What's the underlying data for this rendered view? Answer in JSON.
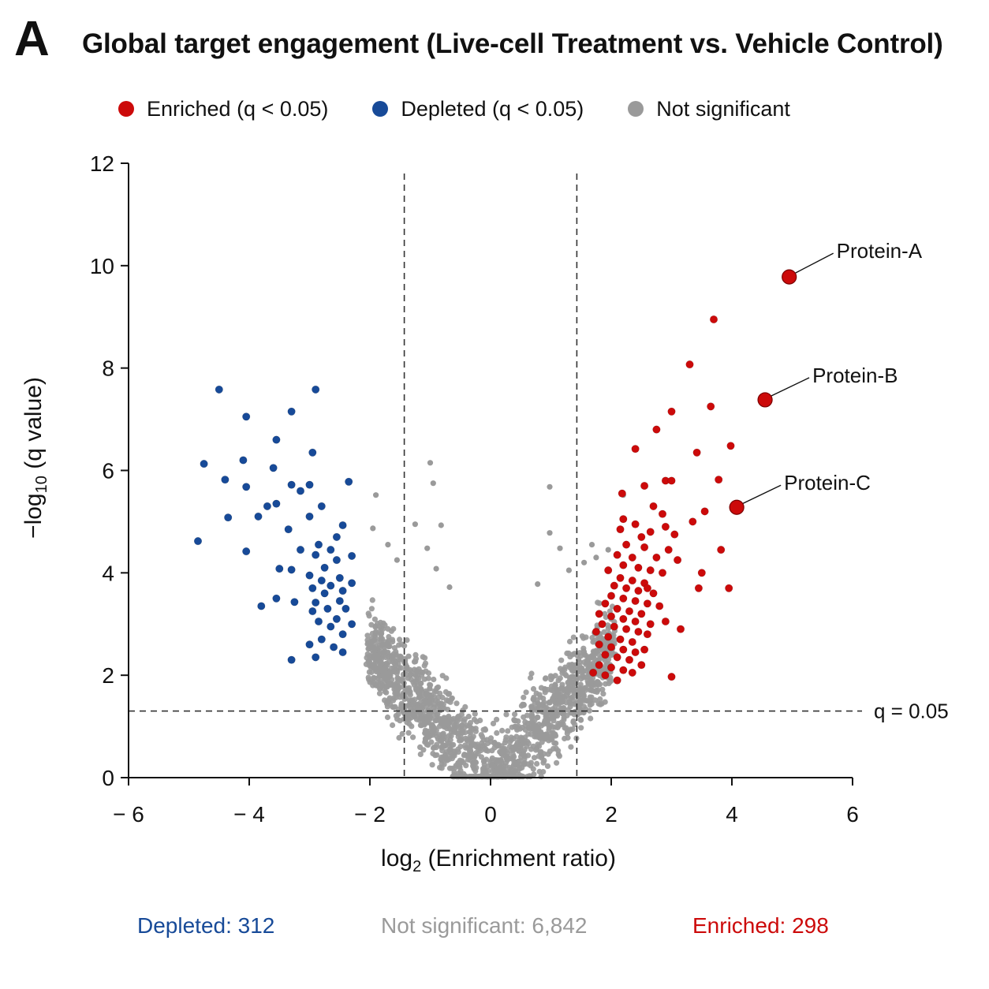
{
  "panel": {
    "letter": "A"
  },
  "colors": {
    "enriched": "#cc0a0a",
    "depleted": "#174a98",
    "not_significant": "#9a9a9a",
    "axis": "#111111"
  },
  "legend": {
    "items": [
      {
        "label": "Enriched (q < 0.05)",
        "color": "#cc0a0a"
      },
      {
        "label": "Depleted (q < 0.05)",
        "color": "#174a98"
      },
      {
        "label": "Not significant",
        "color": "#9a9a9a"
      }
    ]
  },
  "counts": {
    "depleted": "Depleted: 312",
    "not_significant": "Not significant: 6,842",
    "enriched": "Enriched: 298"
  },
  "chart_data": {
    "type": "scatter",
    "title": "Global target engagement (Live-cell Treatment vs. Vehicle Control)",
    "xlabel_prefix": "log",
    "xlabel_sub": "2",
    "xlabel_suffix": " (Enrichment ratio)",
    "ylabel_prefix": "−log",
    "ylabel_sub": "10",
    "ylabel_suffix": " (q value)",
    "xlim": [
      -6,
      6
    ],
    "ylim": [
      0,
      12
    ],
    "xticks": [
      -6,
      -4,
      -2,
      0,
      2,
      4,
      6
    ],
    "xtick_labels": [
      "− 6",
      "− 4",
      "− 2",
      "0",
      "2",
      "4",
      "6"
    ],
    "yticks": [
      0,
      2,
      4,
      6,
      8,
      10,
      12
    ],
    "ytick_labels": [
      "0",
      "2",
      "4",
      "6",
      "8",
      "10",
      "12"
    ],
    "thresholds": {
      "fc_x": [
        -1.43,
        1.43
      ],
      "q_y": 1.3,
      "q_label": "q = 0.05"
    },
    "grid": false,
    "legend_position": "top",
    "highlighted": [
      {
        "label": "Protein-A",
        "x": 4.95,
        "y": 9.78
      },
      {
        "label": "Protein-B",
        "x": 4.55,
        "y": 7.38
      },
      {
        "label": "Protein-C",
        "x": 4.08,
        "y": 5.28
      }
    ],
    "series": [
      {
        "name": "Enriched (q < 0.05)",
        "points": [
          [
            3.7,
            8.95
          ],
          [
            3.3,
            8.07
          ],
          [
            3.65,
            7.25
          ],
          [
            3.0,
            7.15
          ],
          [
            2.75,
            6.8
          ],
          [
            3.98,
            6.48
          ],
          [
            2.4,
            6.42
          ],
          [
            3.42,
            6.35
          ],
          [
            3.78,
            5.82
          ],
          [
            2.9,
            5.8
          ],
          [
            3.0,
            5.8
          ],
          [
            2.55,
            5.7
          ],
          [
            2.18,
            5.55
          ],
          [
            2.7,
            5.3
          ],
          [
            3.55,
            5.2
          ],
          [
            2.85,
            5.15
          ],
          [
            2.2,
            5.05
          ],
          [
            3.35,
            5.0
          ],
          [
            2.4,
            4.95
          ],
          [
            2.9,
            4.9
          ],
          [
            2.15,
            4.85
          ],
          [
            2.65,
            4.8
          ],
          [
            3.05,
            4.75
          ],
          [
            2.5,
            4.7
          ],
          [
            3.82,
            4.45
          ],
          [
            2.25,
            4.55
          ],
          [
            2.55,
            4.5
          ],
          [
            2.95,
            4.45
          ],
          [
            2.1,
            4.35
          ],
          [
            2.35,
            4.3
          ],
          [
            2.75,
            4.3
          ],
          [
            3.1,
            4.25
          ],
          [
            2.2,
            4.15
          ],
          [
            2.45,
            4.1
          ],
          [
            2.65,
            4.05
          ],
          [
            2.85,
            4.0
          ],
          [
            3.5,
            4.0
          ],
          [
            1.95,
            4.05
          ],
          [
            2.15,
            3.9
          ],
          [
            2.35,
            3.85
          ],
          [
            2.55,
            3.8
          ],
          [
            2.05,
            3.75
          ],
          [
            3.45,
            3.7
          ],
          [
            3.95,
            3.7
          ],
          [
            2.25,
            3.7
          ],
          [
            2.45,
            3.65
          ],
          [
            2.7,
            3.6
          ],
          [
            2.0,
            3.55
          ],
          [
            2.2,
            3.5
          ],
          [
            2.4,
            3.45
          ],
          [
            2.6,
            3.4
          ],
          [
            2.8,
            3.35
          ],
          [
            1.9,
            3.4
          ],
          [
            2.1,
            3.3
          ],
          [
            2.3,
            3.25
          ],
          [
            2.5,
            3.2
          ],
          [
            1.8,
            3.2
          ],
          [
            2.0,
            3.15
          ],
          [
            2.2,
            3.1
          ],
          [
            2.4,
            3.05
          ],
          [
            2.65,
            3.0
          ],
          [
            2.9,
            3.05
          ],
          [
            1.85,
            3.0
          ],
          [
            2.05,
            2.95
          ],
          [
            2.25,
            2.9
          ],
          [
            2.45,
            2.85
          ],
          [
            2.6,
            2.8
          ],
          [
            1.75,
            2.85
          ],
          [
            1.95,
            2.75
          ],
          [
            2.15,
            2.7
          ],
          [
            2.35,
            2.65
          ],
          [
            3.15,
            2.9
          ],
          [
            1.8,
            2.6
          ],
          [
            2.0,
            2.55
          ],
          [
            2.2,
            2.5
          ],
          [
            2.4,
            2.45
          ],
          [
            1.9,
            2.4
          ],
          [
            2.1,
            2.35
          ],
          [
            2.3,
            2.3
          ],
          [
            2.5,
            2.2
          ],
          [
            1.8,
            2.2
          ],
          [
            2.0,
            2.15
          ],
          [
            2.2,
            2.1
          ],
          [
            1.7,
            2.05
          ],
          [
            2.35,
            2.05
          ],
          [
            1.9,
            2.0
          ],
          [
            2.1,
            1.9
          ],
          [
            3.0,
            1.97
          ],
          [
            2.55,
            2.5
          ],
          [
            2.6,
            3.7
          ]
        ]
      },
      {
        "name": "Depleted (q < 0.05)",
        "points": [
          [
            -4.5,
            7.58
          ],
          [
            -2.9,
            7.58
          ],
          [
            -4.05,
            7.05
          ],
          [
            -3.3,
            7.15
          ],
          [
            -3.55,
            6.6
          ],
          [
            -4.75,
            6.13
          ],
          [
            -4.1,
            6.2
          ],
          [
            -2.95,
            6.35
          ],
          [
            -3.6,
            6.05
          ],
          [
            -4.4,
            5.82
          ],
          [
            -3.3,
            5.72
          ],
          [
            -3.0,
            5.72
          ],
          [
            -2.35,
            5.78
          ],
          [
            -4.05,
            5.68
          ],
          [
            -3.15,
            5.6
          ],
          [
            -3.55,
            5.35
          ],
          [
            -3.7,
            5.3
          ],
          [
            -2.8,
            5.3
          ],
          [
            -3.85,
            5.1
          ],
          [
            -4.35,
            5.08
          ],
          [
            -3.0,
            5.1
          ],
          [
            -2.45,
            4.93
          ],
          [
            -3.35,
            4.85
          ],
          [
            -2.55,
            4.7
          ],
          [
            -4.85,
            4.62
          ],
          [
            -2.85,
            4.55
          ],
          [
            -3.15,
            4.45
          ],
          [
            -4.05,
            4.42
          ],
          [
            -2.65,
            4.45
          ],
          [
            -2.3,
            4.33
          ],
          [
            -2.9,
            4.35
          ],
          [
            -2.55,
            4.25
          ],
          [
            -3.5,
            4.08
          ],
          [
            -3.3,
            4.06
          ],
          [
            -2.75,
            4.1
          ],
          [
            -3.0,
            3.95
          ],
          [
            -2.5,
            3.9
          ],
          [
            -2.8,
            3.85
          ],
          [
            -2.3,
            3.8
          ],
          [
            -2.65,
            3.75
          ],
          [
            -2.95,
            3.7
          ],
          [
            -2.45,
            3.65
          ],
          [
            -2.75,
            3.6
          ],
          [
            -3.55,
            3.5
          ],
          [
            -3.25,
            3.43
          ],
          [
            -2.5,
            3.45
          ],
          [
            -2.9,
            3.42
          ],
          [
            -3.8,
            3.35
          ],
          [
            -2.7,
            3.3
          ],
          [
            -2.4,
            3.3
          ],
          [
            -2.95,
            3.25
          ],
          [
            -2.55,
            3.1
          ],
          [
            -2.85,
            3.05
          ],
          [
            -2.3,
            3.0
          ],
          [
            -2.65,
            2.95
          ],
          [
            -2.45,
            2.8
          ],
          [
            -2.8,
            2.7
          ],
          [
            -3.0,
            2.6
          ],
          [
            -2.6,
            2.55
          ],
          [
            -2.9,
            2.35
          ],
          [
            -3.3,
            2.3
          ],
          [
            -2.45,
            2.45
          ]
        ]
      }
    ]
  }
}
